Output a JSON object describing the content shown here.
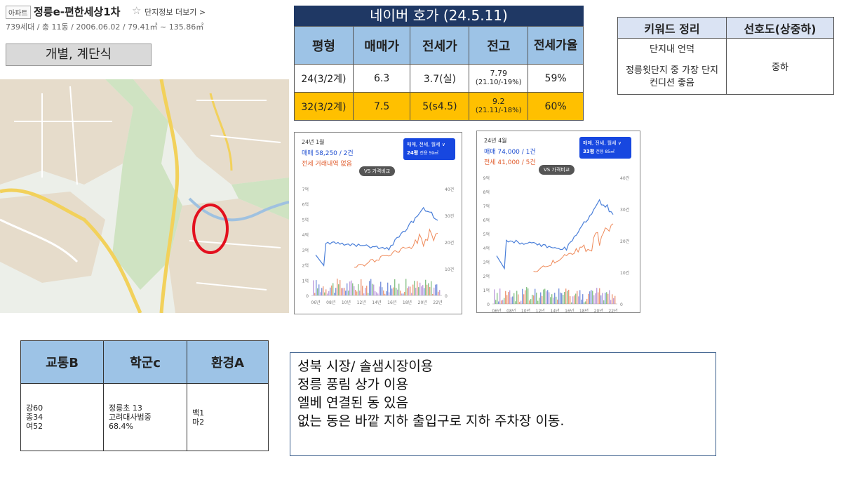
{
  "header": {
    "tag": "아파트",
    "name": "정릉e-편한세상1차",
    "star": "☆",
    "more_link": "단지정보 더보기 >",
    "info": "739세대 / 총 11동 / 2006.06.02 / 79.41㎡ ~ 135.86㎡"
  },
  "type_box": "개별, 계단식",
  "naver": {
    "title": "네이버 호가 (24.5.11)",
    "headers": [
      "평형",
      "매매가",
      "전세가",
      "전고",
      "전세가율"
    ],
    "rows": [
      {
        "size": "24(3/2계)",
        "sale": "6.3",
        "jeonse": "3.7(실)",
        "peak": "7.79",
        "peak_sub": "(21.10/-19%)",
        "ratio": "59%"
      },
      {
        "size": "32(3/2계)",
        "sale": "7.5",
        "jeonse": "5(s4.5)",
        "peak": "9.2",
        "peak_sub": "(21.11/-18%)",
        "ratio": "60%"
      }
    ],
    "highlight_color": "#ffc000"
  },
  "keywords": {
    "headers": [
      "키워드 정리",
      "선호도(상중하)"
    ],
    "line1": "단지내 언덕",
    "line2": "정릉윗단지 중 가장 단지컨디션 좋음",
    "preference": "중하"
  },
  "chart1": {
    "title": "24년 1월",
    "sale": "매매 58,250 / 2건",
    "jeonse": "전세 거래내역 없음",
    "filter_line1": "매매, 전세, 월세 ∨",
    "filter_size": "24평",
    "filter_area": "전용 59㎡",
    "vs": "VS 가격비교",
    "y_left": [
      "7억",
      "6억",
      "5억",
      "4억",
      "3억",
      "2억",
      "1억",
      "0"
    ],
    "y_right": [
      "40건",
      "30건",
      "20건",
      "10건",
      "0"
    ],
    "x_ticks": [
      "06년",
      "08년",
      "10년",
      "12년",
      "14년",
      "16년",
      "18년",
      "20년",
      "22년"
    ]
  },
  "chart2": {
    "title": "24년 4월",
    "sale": "매매 74,000 / 1건",
    "jeonse": "전세 41,000 / 5건",
    "filter_line1": "매매, 전세, 월세 ∨",
    "filter_size": "33평",
    "filter_area": "전용 85㎡",
    "vs": "VS 가격비교",
    "y_left": [
      "9억",
      "8억",
      "7억",
      "6억",
      "5억",
      "4억",
      "3억",
      "2억",
      "1억",
      "0"
    ],
    "y_right": [
      "40건",
      "30건",
      "20건",
      "10건",
      "0"
    ],
    "x_ticks": [
      "06년",
      "08년",
      "10년",
      "12년",
      "14년",
      "16년",
      "18년",
      "20년",
      "22년"
    ]
  },
  "scores": {
    "headers": [
      "교통B",
      "학군c",
      "환경A"
    ],
    "col1": [
      "강60",
      "종34",
      "여52"
    ],
    "col2": [
      "정릉초 13",
      "고려대사범중",
      "68.4%"
    ],
    "col3": [
      "백1",
      "마2"
    ]
  },
  "notes": [
    "성북 시장/ 솔샘시장이용",
    "정릉 풍림 상가 이용",
    "엘베 연결된 동 있음",
    "없는 동은 바깥 지하 출입구로 지하 주차장 이동."
  ]
}
